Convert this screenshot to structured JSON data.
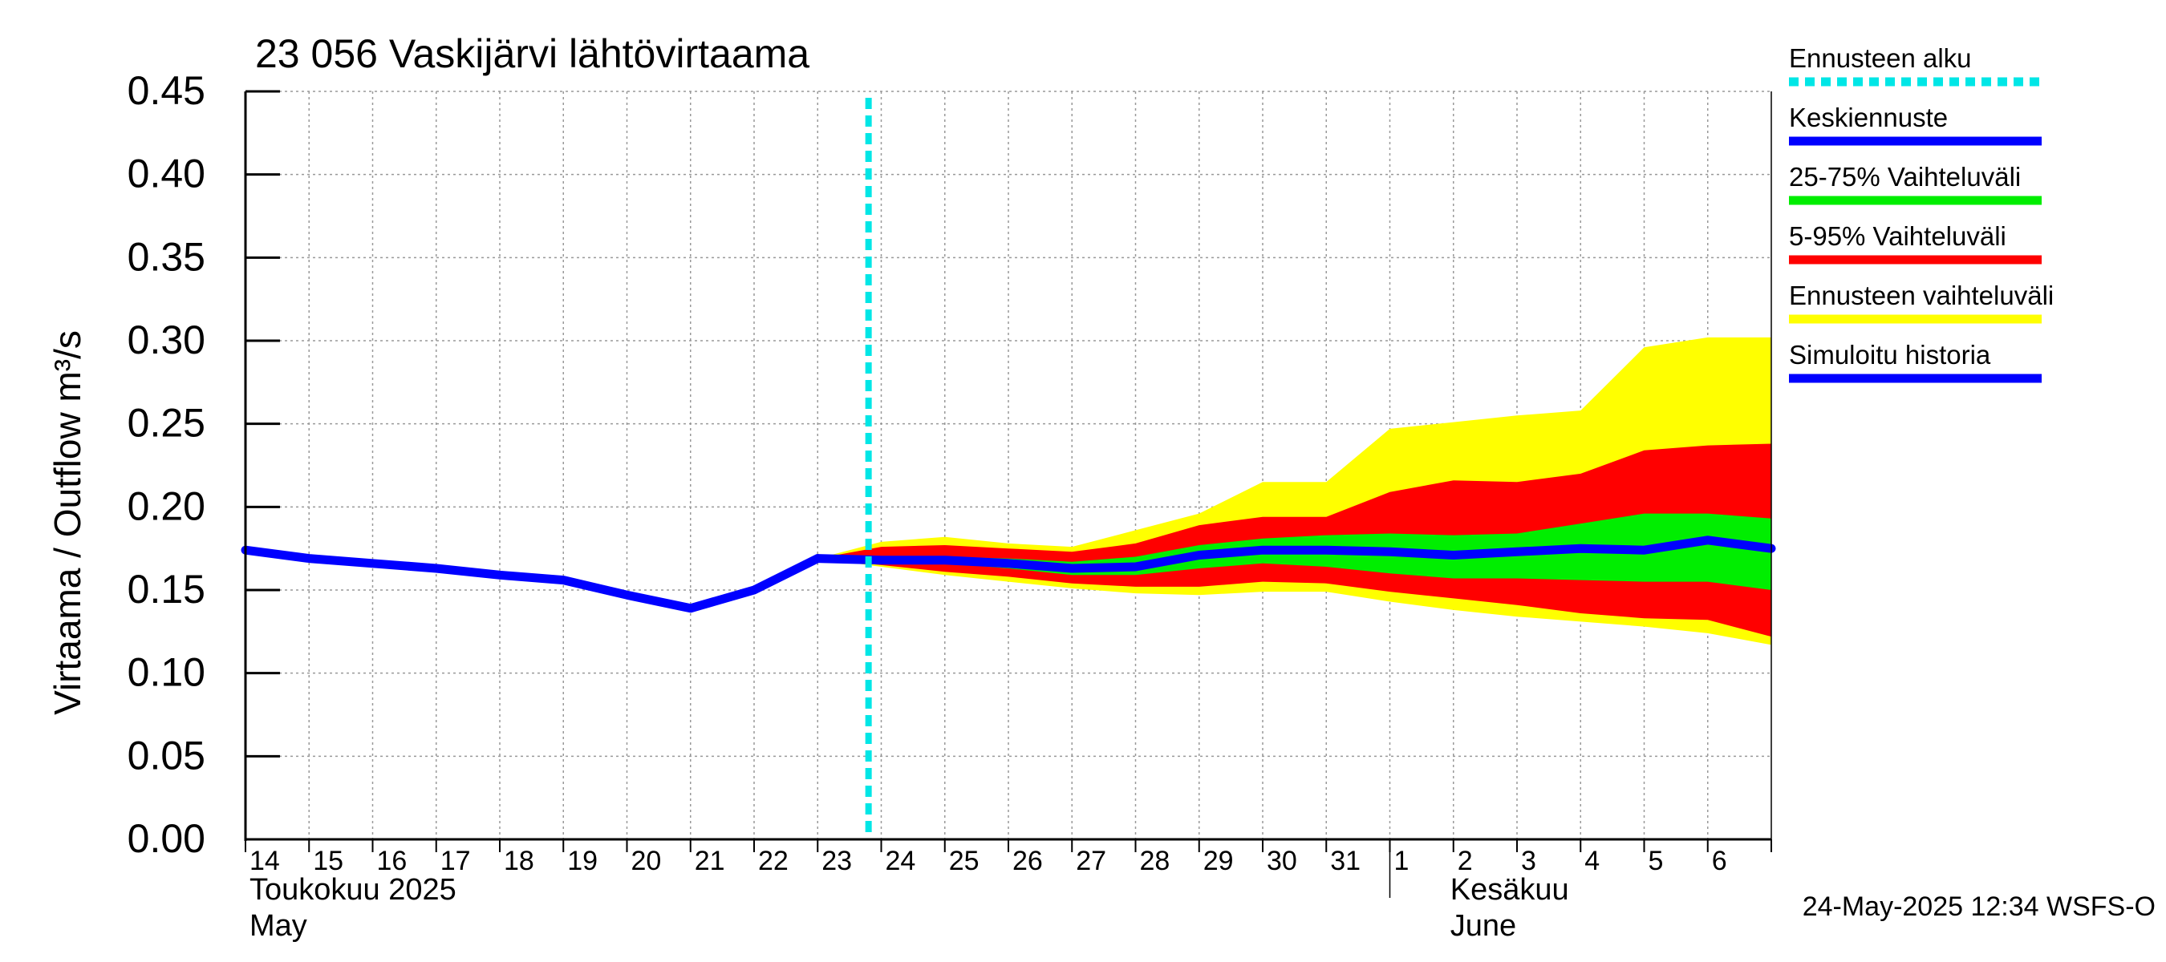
{
  "chart_data": {
    "type": "area",
    "title": "23 056 Vaskijärvi lähtövirtaama",
    "ylabel": "Virtaama / Outflow    m³/s",
    "ylim": [
      0,
      0.45
    ],
    "yticks": [
      0.0,
      0.05,
      0.1,
      0.15,
      0.2,
      0.25,
      0.3,
      0.35,
      0.4,
      0.45
    ],
    "ytick_labels": [
      "0.00",
      "0.05",
      "0.10",
      "0.15",
      "0.20",
      "0.25",
      "0.30",
      "0.35",
      "0.40",
      "0.45"
    ],
    "x_dates": [
      "2025-05-14",
      "2025-05-15",
      "2025-05-16",
      "2025-05-17",
      "2025-05-18",
      "2025-05-19",
      "2025-05-20",
      "2025-05-21",
      "2025-05-22",
      "2025-05-23",
      "2025-05-24",
      "2025-05-25",
      "2025-05-26",
      "2025-05-27",
      "2025-05-28",
      "2025-05-29",
      "2025-05-30",
      "2025-05-31",
      "2025-06-01",
      "2025-06-02",
      "2025-06-03",
      "2025-06-04",
      "2025-06-05",
      "2025-06-06"
    ],
    "day_labels": [
      "14",
      "15",
      "16",
      "17",
      "18",
      "19",
      "20",
      "21",
      "22",
      "23",
      "24",
      "25",
      "26",
      "27",
      "28",
      "29",
      "30",
      "31",
      "1",
      "2",
      "3",
      "4",
      "5",
      "6"
    ],
    "month_labels": [
      {
        "fi": "Toukokuu  2025",
        "en": "May",
        "start_day": 0
      },
      {
        "fi": "Kesäkuu",
        "en": "June",
        "start_day": 18
      }
    ],
    "forecast_start_day": 9.8,
    "simulated_history": {
      "name": "Simuloitu historia",
      "x": [
        0,
        1,
        2,
        3,
        4,
        5,
        6,
        7,
        8,
        9
      ],
      "values": [
        0.174,
        0.169,
        0.166,
        0.163,
        0.159,
        0.156,
        0.147,
        0.139,
        0.15,
        0.169
      ]
    },
    "mean_forecast": {
      "name": "Keskiennuste",
      "x": [
        9,
        10,
        11,
        12,
        13,
        14,
        15,
        16,
        17,
        18,
        19,
        20,
        21,
        22,
        23,
        24
      ],
      "values": [
        0.169,
        0.168,
        0.168,
        0.166,
        0.163,
        0.164,
        0.171,
        0.174,
        0.174,
        0.173,
        0.171,
        0.173,
        0.175,
        0.174,
        0.18,
        0.175
      ]
    },
    "bands": {
      "x": [
        9,
        10,
        11,
        12,
        13,
        14,
        15,
        16,
        17,
        18,
        19,
        20,
        21,
        22,
        23,
        24
      ],
      "full_range": {
        "name": "Ennusteen vaihteluväli",
        "upper": [
          0.169,
          0.179,
          0.182,
          0.178,
          0.176,
          0.186,
          0.196,
          0.215,
          0.215,
          0.247,
          0.251,
          0.255,
          0.258,
          0.296,
          0.302,
          0.302
        ],
        "lower": [
          0.169,
          0.164,
          0.159,
          0.155,
          0.151,
          0.148,
          0.147,
          0.149,
          0.149,
          0.143,
          0.138,
          0.134,
          0.131,
          0.128,
          0.124,
          0.117
        ]
      },
      "p5_95": {
        "name": "5-95% Vaihteluväli",
        "upper": [
          0.169,
          0.176,
          0.177,
          0.175,
          0.173,
          0.178,
          0.189,
          0.194,
          0.194,
          0.209,
          0.216,
          0.215,
          0.22,
          0.234,
          0.237,
          0.238
        ],
        "lower": [
          0.169,
          0.165,
          0.161,
          0.158,
          0.154,
          0.152,
          0.152,
          0.155,
          0.154,
          0.149,
          0.145,
          0.141,
          0.136,
          0.133,
          0.132,
          0.122
        ]
      },
      "p25_75": {
        "name": "25-75% Vaihteluväli",
        "upper": [
          0.169,
          0.17,
          0.17,
          0.169,
          0.167,
          0.17,
          0.177,
          0.181,
          0.183,
          0.184,
          0.183,
          0.184,
          0.19,
          0.196,
          0.196,
          0.193
        ],
        "lower": [
          0.169,
          0.167,
          0.166,
          0.163,
          0.159,
          0.159,
          0.163,
          0.166,
          0.164,
          0.16,
          0.157,
          0.157,
          0.156,
          0.155,
          0.155,
          0.15
        ]
      }
    },
    "legend": [
      {
        "label": "Ennusteen alku",
        "color": "#00e6e6",
        "style": "dashed"
      },
      {
        "label": "Keskiennuste",
        "color": "#0000ff",
        "style": "solid"
      },
      {
        "label": "25-75% Vaihteluväli",
        "color": "#00ee00",
        "style": "solid"
      },
      {
        "label": "5-95% Vaihteluväli",
        "color": "#ff0000",
        "style": "solid"
      },
      {
        "label": "Ennusteen vaihteluväli",
        "color": "#ffff00",
        "style": "solid"
      },
      {
        "label": "Simuloitu historia",
        "color": "#0000ff",
        "style": "solid"
      }
    ],
    "colors": {
      "full_range": "#ffff00",
      "p5_95": "#ff0000",
      "p25_75": "#00ee00",
      "line": "#0000ff",
      "forecast_start": "#00e6e6",
      "grid": "#999999"
    },
    "footer": "24-May-2025 12:34 WSFS-O"
  }
}
